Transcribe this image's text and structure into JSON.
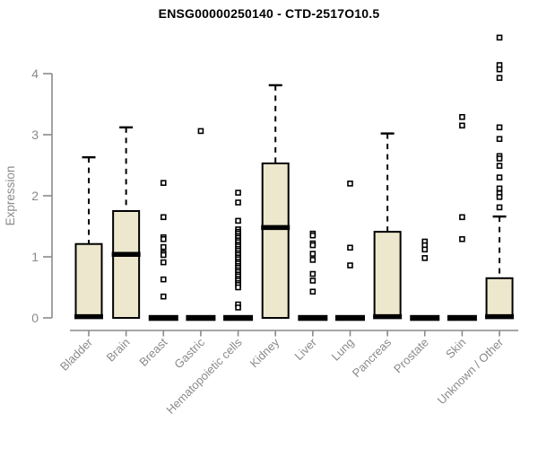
{
  "chart_data": {
    "type": "boxplot",
    "title": "ENSG00000250140 - CTD-2517O10.5",
    "ylabel": "Expression",
    "ylim": [
      0,
      4.7
    ],
    "yticks": [
      0,
      1,
      2,
      3,
      4
    ],
    "grid": false,
    "categories": [
      "Bladder",
      "Brain",
      "Breast",
      "Gastric",
      "Hematopoietic cells",
      "Kidney",
      "Liver",
      "Lung",
      "Pancreas",
      "Prostate",
      "Skin",
      "Unknown / Other"
    ],
    "series": [
      {
        "category": "Bladder",
        "q1": 0,
        "median": 0.02,
        "q3": 1.21,
        "whisker_low": 0,
        "whisker_high": 2.63,
        "outliers": []
      },
      {
        "category": "Brain",
        "q1": 0,
        "median": 1.04,
        "q3": 1.75,
        "whisker_low": 0,
        "whisker_high": 3.12,
        "outliers": []
      },
      {
        "category": "Breast",
        "q1": 0,
        "median": 0,
        "q3": 0,
        "whisker_low": 0,
        "whisker_high": 0,
        "outliers": [
          2.21,
          1.65,
          1.32,
          1.29,
          1.16,
          1.06,
          1.03,
          0.91,
          0.63,
          0.35
        ]
      },
      {
        "category": "Gastric",
        "q1": 0,
        "median": 0,
        "q3": 0,
        "whisker_low": 0,
        "whisker_high": 0,
        "outliers": [
          3.06
        ]
      },
      {
        "category": "Hematopoietic cells",
        "q1": 0,
        "median": 0,
        "q3": 0,
        "whisker_low": 0,
        "whisker_high": 0,
        "outliers": [
          2.05,
          1.89,
          1.59,
          1.45,
          1.41,
          1.38,
          1.34,
          1.31,
          1.27,
          1.24,
          1.2,
          1.17,
          1.13,
          1.1,
          1.06,
          1.03,
          0.99,
          0.96,
          0.92,
          0.89,
          0.85,
          0.82,
          0.78,
          0.75,
          0.71,
          0.68,
          0.64,
          0.61,
          0.57,
          0.54,
          0.5,
          0.22,
          0.17
        ]
      },
      {
        "category": "Kidney",
        "q1": 0,
        "median": 1.48,
        "q3": 2.53,
        "whisker_low": 0,
        "whisker_high": 3.81,
        "outliers": []
      },
      {
        "category": "Liver",
        "q1": 0,
        "median": 0,
        "q3": 0,
        "whisker_low": 0,
        "whisker_high": 0,
        "outliers": [
          1.38,
          1.35,
          1.22,
          1.19,
          1.05,
          0.95,
          0.72,
          0.61,
          0.43
        ]
      },
      {
        "category": "Lung",
        "q1": 0,
        "median": 0,
        "q3": 0,
        "whisker_low": 0,
        "whisker_high": 0,
        "outliers": [
          2.2,
          1.15,
          0.86
        ]
      },
      {
        "category": "Pancreas",
        "q1": 0,
        "median": 0.02,
        "q3": 1.41,
        "whisker_low": 0,
        "whisker_high": 3.02,
        "outliers": []
      },
      {
        "category": "Prostate",
        "q1": 0,
        "median": 0,
        "q3": 0,
        "whisker_low": 0,
        "whisker_high": 0,
        "outliers": [
          1.25,
          1.19,
          1.12,
          0.98
        ]
      },
      {
        "category": "Skin",
        "q1": 0,
        "median": 0,
        "q3": 0,
        "whisker_low": 0,
        "whisker_high": 0,
        "outliers": [
          3.29,
          3.15,
          1.65,
          1.29
        ]
      },
      {
        "category": "Unknown / Other",
        "q1": 0,
        "median": 0.02,
        "q3": 0.65,
        "whisker_low": 0,
        "whisker_high": 1.66,
        "outliers": [
          4.59,
          4.14,
          4.07,
          3.93,
          3.12,
          2.93,
          2.65,
          2.61,
          2.49,
          2.3,
          2.12,
          2.04,
          1.98,
          1.81
        ]
      }
    ]
  },
  "colors": {
    "box_fill": "#ede8cd",
    "box_stroke": "#000000",
    "axis": "#8a8a8a",
    "title": "#000000",
    "background": "#ffffff"
  }
}
